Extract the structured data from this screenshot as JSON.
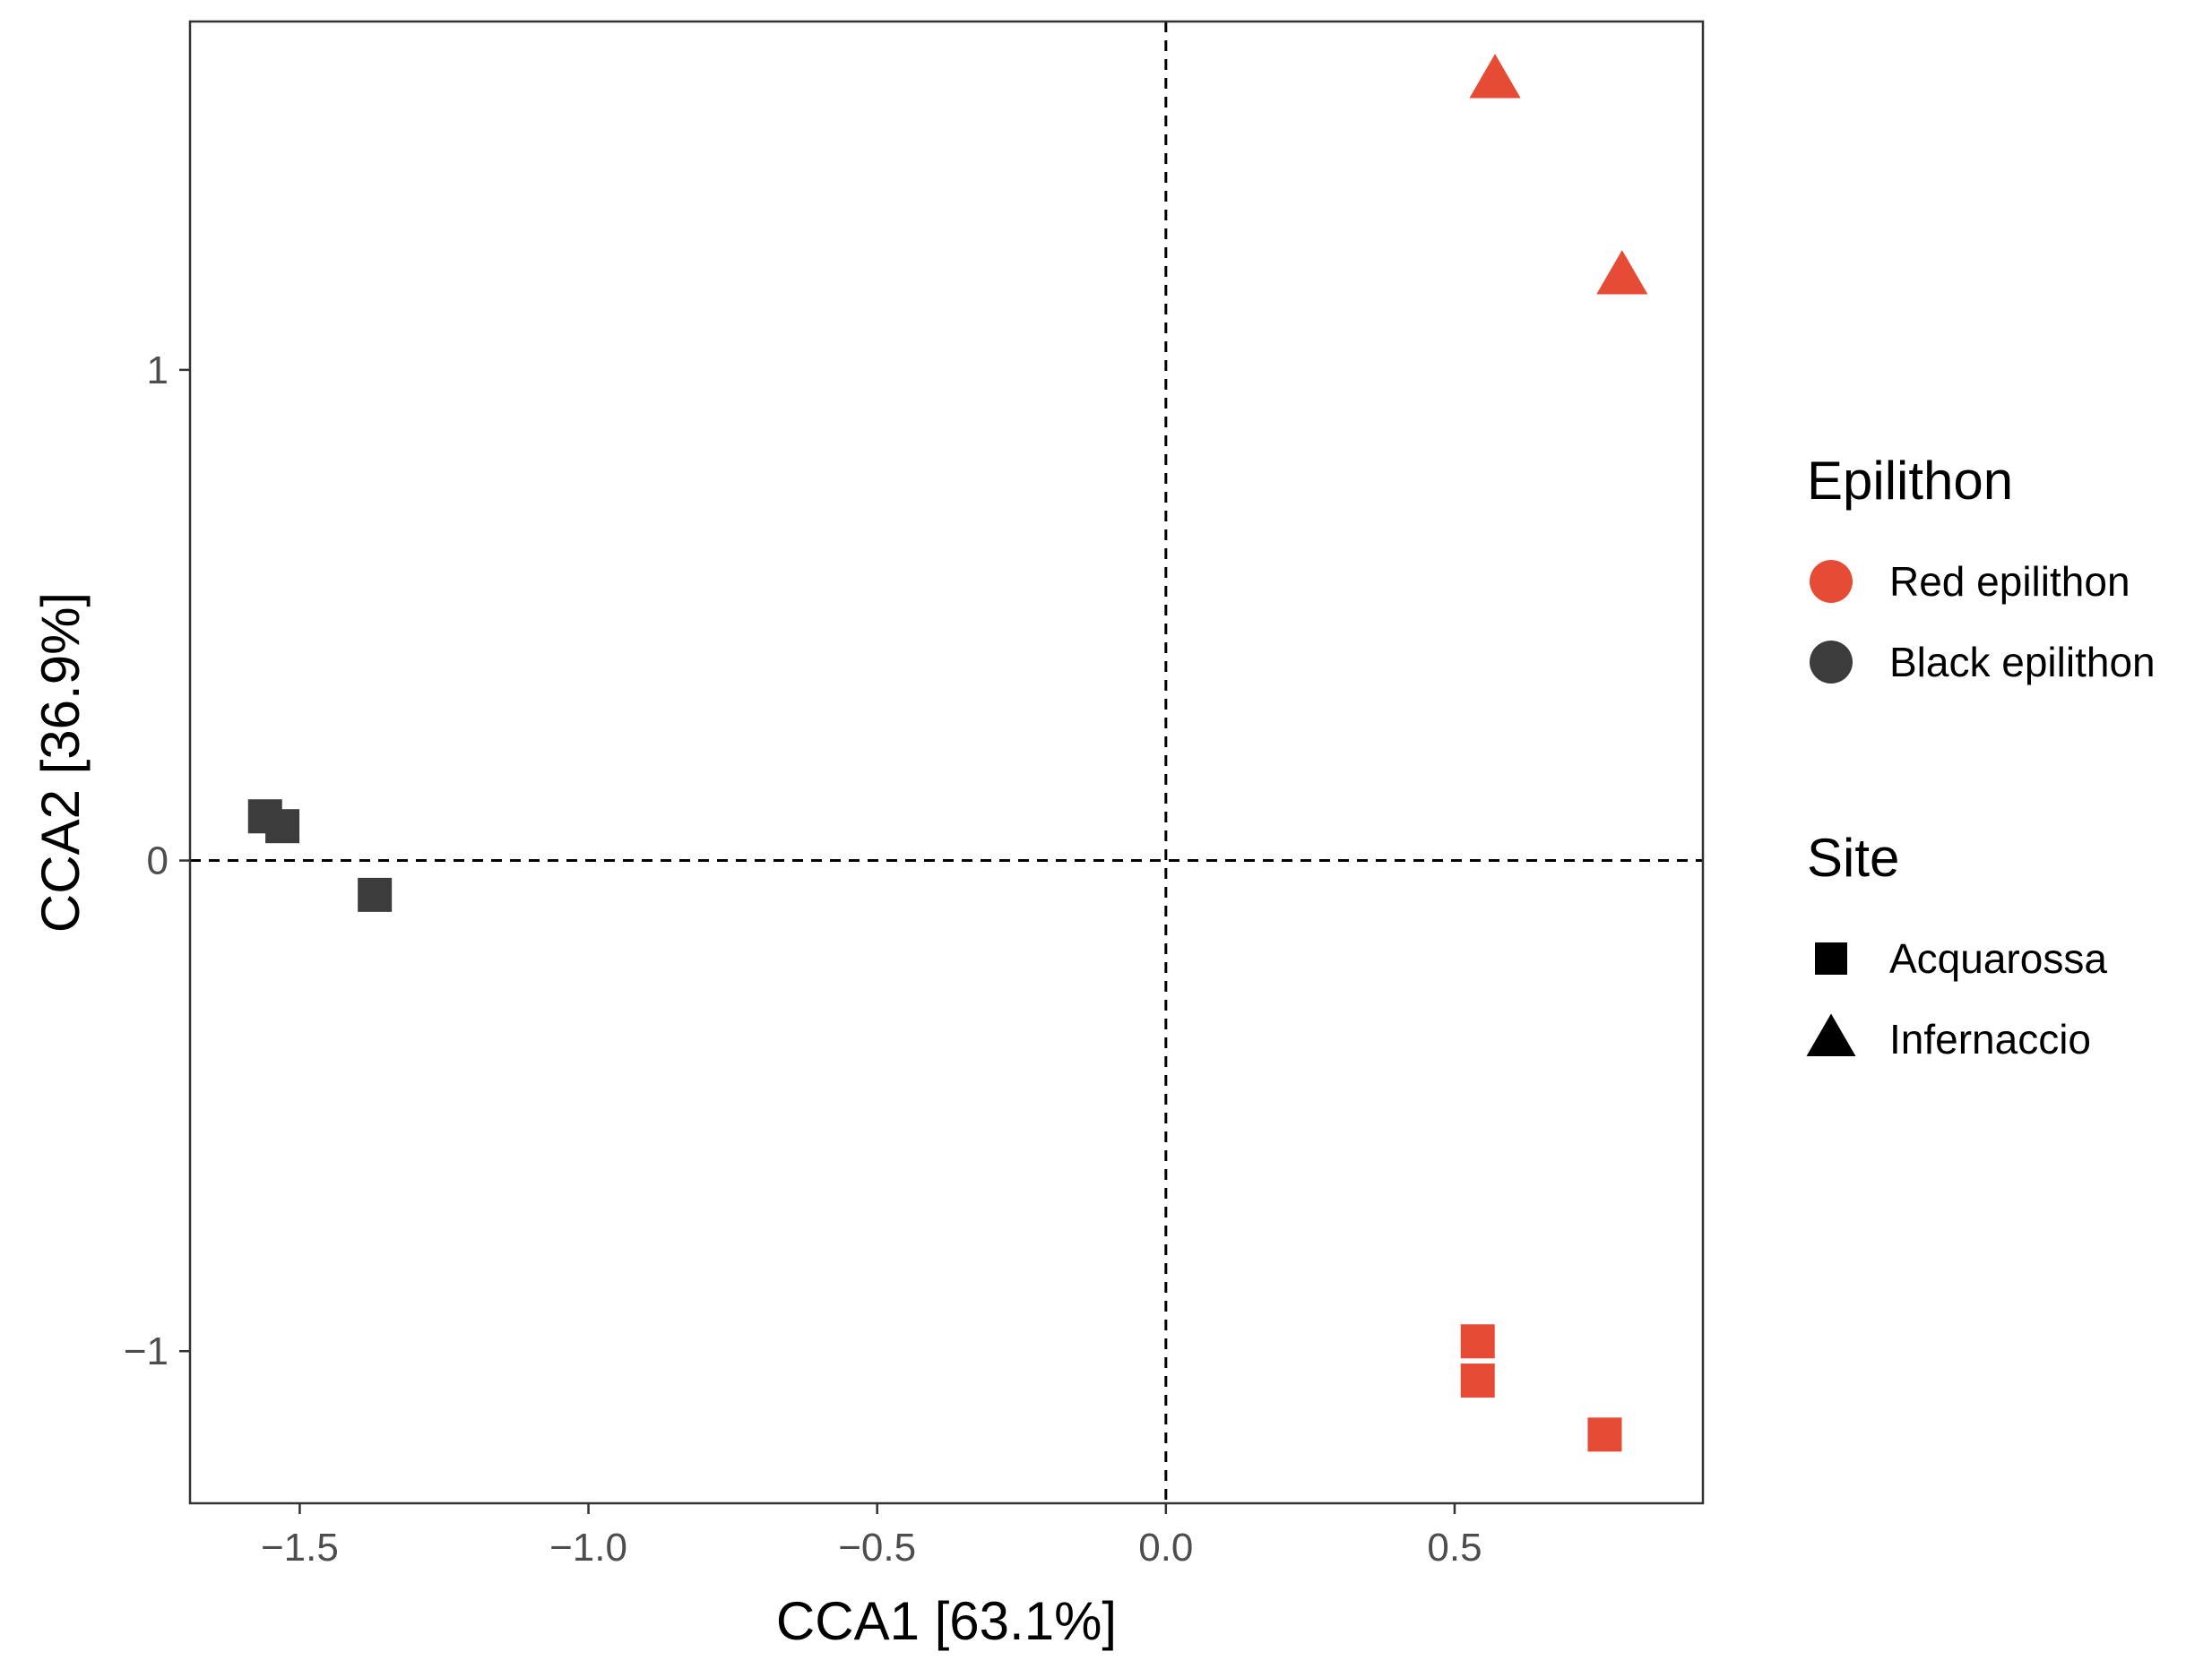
{
  "chart_data": {
    "type": "scatter",
    "title": "",
    "xlabel": "CCA1 [63.1%]",
    "ylabel": "CCA2 [36.9%]",
    "xlim": [
      -1.69,
      0.93
    ],
    "ylim": [
      -1.31,
      1.71
    ],
    "xticks": [
      {
        "value": -1.5,
        "label": "−1.5"
      },
      {
        "value": -1.0,
        "label": "−1.0"
      },
      {
        "value": -0.5,
        "label": "−0.5"
      },
      {
        "value": 0.0,
        "label": "0.0"
      },
      {
        "value": 0.5,
        "label": "0.5"
      }
    ],
    "yticks": [
      {
        "value": -1,
        "label": "−1"
      },
      {
        "value": 0,
        "label": "0"
      },
      {
        "value": 1,
        "label": "1"
      }
    ],
    "grid": false,
    "reference_lines": {
      "x": 0,
      "y": 0,
      "style": "dashed"
    },
    "colors": {
      "Red epilithon": "#e64b35",
      "Black epilithon": "#3c3c3c"
    },
    "shapes": {
      "Acquarossa": "square",
      "Infernaccio": "triangle"
    },
    "points": [
      {
        "x": -1.56,
        "y": 0.09,
        "epilithon": "Black epilithon",
        "site": "Acquarossa"
      },
      {
        "x": -1.53,
        "y": 0.07,
        "epilithon": "Black epilithon",
        "site": "Acquarossa"
      },
      {
        "x": -1.37,
        "y": -0.07,
        "epilithon": "Black epilithon",
        "site": "Acquarossa"
      },
      {
        "x": 0.54,
        "y": -0.98,
        "epilithon": "Red epilithon",
        "site": "Acquarossa"
      },
      {
        "x": 0.54,
        "y": -1.06,
        "epilithon": "Red epilithon",
        "site": "Acquarossa"
      },
      {
        "x": 0.76,
        "y": -1.17,
        "epilithon": "Red epilithon",
        "site": "Acquarossa"
      },
      {
        "x": 0.57,
        "y": 1.59,
        "epilithon": "Red epilithon",
        "site": "Infernaccio"
      },
      {
        "x": 0.79,
        "y": 1.19,
        "epilithon": "Red epilithon",
        "site": "Infernaccio"
      }
    ],
    "legends": [
      {
        "title": "Epilithon",
        "items": [
          {
            "label": "Red epilithon",
            "shape": "circle",
            "color": "#e64b35"
          },
          {
            "label": "Black epilithon",
            "shape": "circle",
            "color": "#3c3c3c"
          }
        ]
      },
      {
        "title": "Site",
        "items": [
          {
            "label": "Acquarossa",
            "shape": "square",
            "color": "#000000"
          },
          {
            "label": "Infernaccio",
            "shape": "triangle",
            "color": "#000000"
          }
        ]
      }
    ],
    "legend_position": "right"
  }
}
